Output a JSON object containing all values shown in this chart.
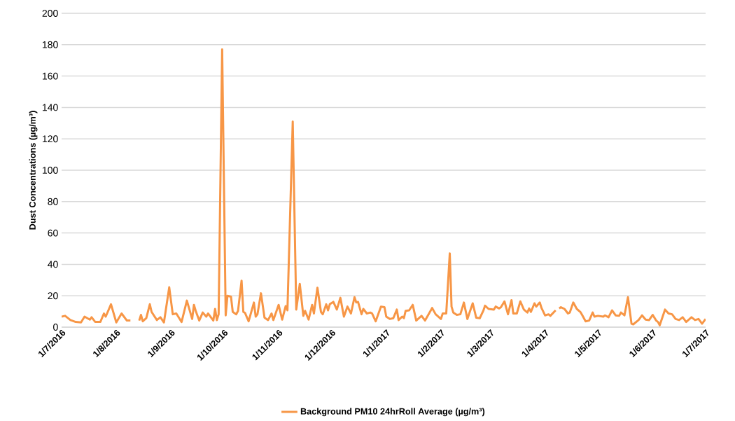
{
  "chart_data": {
    "type": "line",
    "ylabel": "Dust Concentrations (µg/m³)",
    "x": [
      "2016-07-01",
      "2016-07-03",
      "2016-07-06",
      "2016-07-09",
      "2016-07-12",
      "2016-07-14",
      "2016-07-17",
      "2016-07-18",
      "2016-07-20",
      "2016-07-23",
      "2016-07-25",
      "2016-07-26",
      "2016-07-29",
      "2016-08-01",
      "2016-08-04",
      "2016-08-07",
      "2016-08-09",
      "2016-08-11",
      "2016-08-14",
      "2016-08-15",
      "2016-08-16",
      "2016-08-18",
      "2016-08-20",
      "2016-08-21",
      "2016-08-24",
      "2016-08-26",
      "2016-08-28",
      "2016-08-31",
      "2016-09-02",
      "2016-09-04",
      "2016-09-07",
      "2016-09-10",
      "2016-09-13",
      "2016-09-14",
      "2016-09-15",
      "2016-09-17",
      "2016-09-19",
      "2016-09-21",
      "2016-09-22",
      "2016-09-25",
      "2016-09-26",
      "2016-09-27",
      "2016-09-28",
      "2016-09-30",
      "2016-10-02",
      "2016-10-03",
      "2016-10-05",
      "2016-10-06",
      "2016-10-08",
      "2016-10-09",
      "2016-10-11",
      "2016-10-12",
      "2016-10-13",
      "2016-10-15",
      "2016-10-18",
      "2016-10-19",
      "2016-10-20",
      "2016-10-22",
      "2016-10-24",
      "2016-10-26",
      "2016-10-28",
      "2016-10-29",
      "2016-11-01",
      "2016-11-03",
      "2016-11-05",
      "2016-11-06",
      "2016-11-09",
      "2016-11-11",
      "2016-11-13",
      "2016-11-15",
      "2016-11-16",
      "2016-11-18",
      "2016-11-20",
      "2016-11-21",
      "2016-11-23",
      "2016-11-25",
      "2016-11-26",
      "2016-11-28",
      "2016-11-29",
      "2016-11-30",
      "2016-12-02",
      "2016-12-04",
      "2016-12-06",
      "2016-12-08",
      "2016-12-10",
      "2016-12-12",
      "2016-12-14",
      "2016-12-15",
      "2016-12-16",
      "2016-12-18",
      "2016-12-19",
      "2016-12-21",
      "2016-12-23",
      "2016-12-24",
      "2016-12-26",
      "2016-12-29",
      "2016-12-31",
      "2017-01-01",
      "2017-01-03",
      "2017-01-05",
      "2017-01-07",
      "2017-01-08",
      "2017-01-10",
      "2017-01-11",
      "2017-01-12",
      "2017-01-14",
      "2017-01-16",
      "2017-01-18",
      "2017-01-21",
      "2017-01-23",
      "2017-01-27",
      "2017-01-29",
      "2017-02-01",
      "2017-02-02",
      "2017-02-04",
      "2017-02-06",
      "2017-02-07",
      "2017-02-08",
      "2017-02-10",
      "2017-02-12",
      "2017-02-14",
      "2017-02-16",
      "2017-02-19",
      "2017-02-21",
      "2017-02-23",
      "2017-02-25",
      "2017-02-26",
      "2017-02-28",
      "2017-03-03",
      "2017-03-04",
      "2017-03-06",
      "2017-03-07",
      "2017-03-09",
      "2017-03-11",
      "2017-03-13",
      "2017-03-14",
      "2017-03-16",
      "2017-03-18",
      "2017-03-20",
      "2017-03-22",
      "2017-03-23",
      "2017-03-24",
      "2017-03-26",
      "2017-03-27",
      "2017-03-29",
      "2017-03-30",
      "2017-04-01",
      "2017-04-03",
      "2017-04-04",
      "2017-04-07",
      "2017-04-08",
      "2017-04-09",
      "2017-04-10",
      "2017-04-12",
      "2017-04-14",
      "2017-04-15",
      "2017-04-17",
      "2017-04-19",
      "2017-04-21",
      "2017-04-22",
      "2017-04-24",
      "2017-04-26",
      "2017-04-28",
      "2017-04-29",
      "2017-05-01",
      "2017-05-04",
      "2017-05-05",
      "2017-05-07",
      "2017-05-09",
      "2017-05-11",
      "2017-05-13",
      "2017-05-14",
      "2017-05-16",
      "2017-05-18",
      "2017-05-20",
      "2017-05-21",
      "2017-05-24",
      "2017-05-26",
      "2017-05-28",
      "2017-05-30",
      "2017-06-01",
      "2017-06-03",
      "2017-06-04",
      "2017-06-05",
      "2017-06-08",
      "2017-06-10",
      "2017-06-12",
      "2017-06-14",
      "2017-06-16",
      "2017-06-18",
      "2017-06-20",
      "2017-06-23",
      "2017-06-25",
      "2017-06-27",
      "2017-06-29",
      "2017-07-01"
    ],
    "series": [
      {
        "name": "Background PM10 24hrRoll Average (µg/m³)",
        "color": "#f79646",
        "values": [
          6.7,
          7.2,
          4.5,
          3.3,
          3,
          6.7,
          4.8,
          6.3,
          3.4,
          3.4,
          8.7,
          6.7,
          14.6,
          3,
          8.7,
          4.2,
          4.2,
          null,
          4.2,
          7.8,
          3.7,
          5.7,
          14.6,
          9.7,
          4.5,
          6.3,
          3,
          25.4,
          8.2,
          8.7,
          3.3,
          16.9,
          5.2,
          14.2,
          10.4,
          4.2,
          9.3,
          6.7,
          8.7,
          4.2,
          11.6,
          4.5,
          8.2,
          177,
          7.5,
          20,
          19.4,
          9.7,
          8.2,
          10.4,
          29.6,
          9.7,
          9,
          3.7,
          15.7,
          6.7,
          8.2,
          21.6,
          6,
          4.5,
          8.7,
          4.5,
          14.2,
          4.8,
          13.4,
          10.7,
          131,
          11.2,
          27.6,
          7.2,
          10.4,
          4.8,
          14.2,
          8.7,
          25.1,
          9.7,
          8.2,
          14.6,
          10.7,
          14.6,
          16.1,
          11.2,
          18.7,
          6.7,
          13.1,
          8.7,
          19.1,
          15.7,
          16.1,
          8.2,
          11.6,
          8.7,
          9.3,
          8.7,
          3.7,
          13.1,
          12.7,
          6.7,
          5.2,
          5.7,
          11.2,
          4.5,
          6.7,
          5.7,
          10.4,
          10.7,
          14.2,
          4.2,
          7.2,
          4.2,
          12.2,
          8.2,
          5.2,
          8.7,
          8.7,
          47,
          13.1,
          9.3,
          7.8,
          8.2,
          15.7,
          5.2,
          15.2,
          6,
          5.7,
          10.4,
          13.7,
          11.6,
          11.2,
          13.1,
          11.9,
          12.7,
          16.4,
          8.2,
          17.2,
          8.7,
          8.7,
          16.4,
          11.2,
          9.3,
          11.9,
          9.7,
          15.2,
          13.1,
          15.7,
          12.2,
          7.5,
          8.2,
          7.2,
          10.7,
          null,
          11.9,
          12.7,
          11.6,
          8.7,
          9.3,
          15.7,
          11.6,
          9.7,
          7.8,
          3.7,
          4.2,
          9.3,
          6.7,
          7.2,
          6.7,
          7.5,
          6.3,
          10.7,
          7.5,
          7.2,
          9.3,
          7.5,
          19.1,
          2.2,
          1.8,
          4.5,
          7.5,
          4.8,
          4.5,
          7.8,
          4.2,
          3.3,
          1.2,
          11.2,
          8.7,
          8.2,
          5.2,
          4.5,
          6.3,
          3.3,
          6.3,
          4.5,
          5.2,
          2.2,
          5.2
        ]
      }
    ],
    "xlim": [
      "2016-07-01",
      "2017-07-01"
    ],
    "xticks": [
      {
        "value": "2016-07-01",
        "label": "1/7/2016"
      },
      {
        "value": "2016-08-01",
        "label": "1/8/2016"
      },
      {
        "value": "2016-09-01",
        "label": "1/9/2016"
      },
      {
        "value": "2016-10-01",
        "label": "1/10/2016"
      },
      {
        "value": "2016-11-01",
        "label": "1/11/2016"
      },
      {
        "value": "2016-12-01",
        "label": "1/12/2016"
      },
      {
        "value": "2017-01-01",
        "label": "1/1/2017"
      },
      {
        "value": "2017-02-01",
        "label": "1/2/2017"
      },
      {
        "value": "2017-03-01",
        "label": "1/3/2017"
      },
      {
        "value": "2017-04-01",
        "label": "1/4/2017"
      },
      {
        "value": "2017-05-01",
        "label": "1/5/2017"
      },
      {
        "value": "2017-06-01",
        "label": "1/6/2017"
      },
      {
        "value": "2017-07-01",
        "label": "1/7/2017"
      }
    ],
    "ylim": [
      0,
      200
    ],
    "yticks": [
      0,
      20,
      40,
      60,
      80,
      100,
      120,
      140,
      160,
      180,
      200
    ],
    "grid": "y",
    "legend": "bottom",
    "marker": "none",
    "line_style": "solid"
  }
}
